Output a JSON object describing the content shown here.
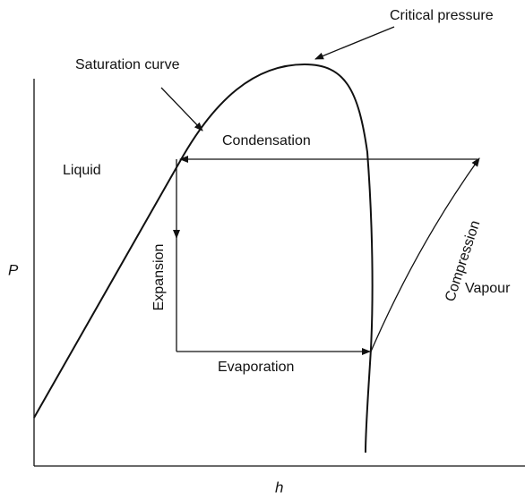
{
  "labels": {
    "critical_pressure": "Critical pressure",
    "saturation_curve": "Saturation curve",
    "condensation": "Condensation",
    "liquid": "Liquid",
    "expansion": "Expansion",
    "compression": "Compression",
    "vapour": "Vapour",
    "evaporation": "Evaporation",
    "y_axis": "P",
    "x_axis": "h"
  }
}
